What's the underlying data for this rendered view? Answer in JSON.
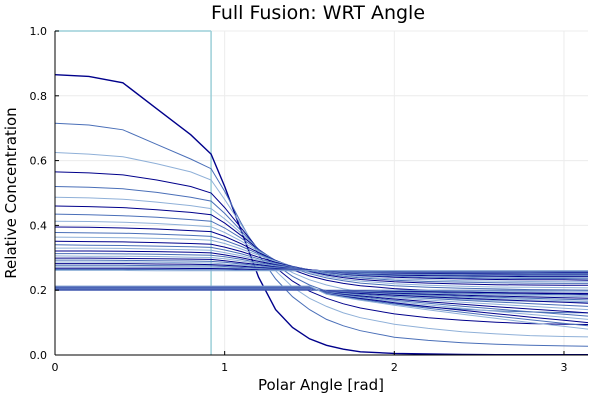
{
  "chart_data": {
    "type": "line",
    "title": "Full Fusion: WRT Angle",
    "xlabel": "Polar Angle [rad]",
    "ylabel": "Relative Concentration",
    "xlim": [
      0,
      3.14159
    ],
    "ylim": [
      0,
      1
    ],
    "x_ticks": [
      {
        "value": 0,
        "label": "0"
      },
      {
        "value": 1,
        "label": "1"
      },
      {
        "value": 2,
        "label": "2"
      },
      {
        "value": 3,
        "label": "3"
      }
    ],
    "y_ticks": [
      {
        "value": 0,
        "label": "0.0"
      },
      {
        "value": 0.2,
        "label": "0.2"
      },
      {
        "value": 0.4,
        "label": "0.4"
      },
      {
        "value": 0.6,
        "label": "0.6"
      },
      {
        "value": 0.8,
        "label": "0.8"
      },
      {
        "value": 1,
        "label": "1.0"
      }
    ],
    "grid": true,
    "legend": "none",
    "x": [
      0,
      0.2,
      0.4,
      0.6,
      0.8,
      0.92,
      1.0,
      1.1,
      1.2,
      1.3,
      1.4,
      1.5,
      1.6,
      1.7,
      1.8,
      2.0,
      2.2,
      2.4,
      2.6,
      2.8,
      3.0,
      3.14159
    ],
    "series_colors": [
      "#00008b",
      "#4a6fb8",
      "#8fb0d8"
    ],
    "reference_line": {
      "color": "#9ccfd8",
      "x": 0.92,
      "y": 1.0
    },
    "series": [
      {
        "values": [
          0.865,
          0.86,
          0.84,
          0.76,
          0.68,
          0.62,
          0.52,
          0.38,
          0.24,
          0.14,
          0.085,
          0.05,
          0.03,
          0.018,
          0.01,
          0.005,
          0.003,
          0.002,
          0.001,
          0.001,
          0.001,
          0.001
        ]
      },
      {
        "values": [
          0.715,
          0.71,
          0.695,
          0.65,
          0.605,
          0.575,
          0.505,
          0.405,
          0.31,
          0.235,
          0.18,
          0.14,
          0.11,
          0.09,
          0.075,
          0.055,
          0.045,
          0.038,
          0.033,
          0.03,
          0.028,
          0.027
        ]
      },
      {
        "values": [
          0.625,
          0.62,
          0.612,
          0.59,
          0.565,
          0.54,
          0.48,
          0.4,
          0.32,
          0.26,
          0.21,
          0.175,
          0.15,
          0.13,
          0.115,
          0.095,
          0.082,
          0.072,
          0.065,
          0.06,
          0.057,
          0.056
        ]
      },
      {
        "values": [
          0.565,
          0.562,
          0.556,
          0.54,
          0.52,
          0.5,
          0.455,
          0.39,
          0.325,
          0.27,
          0.228,
          0.197,
          0.175,
          0.158,
          0.145,
          0.127,
          0.115,
          0.107,
          0.101,
          0.097,
          0.095,
          0.094
        ]
      },
      {
        "values": [
          0.52,
          0.518,
          0.513,
          0.502,
          0.487,
          0.475,
          0.437,
          0.382,
          0.326,
          0.279,
          0.243,
          0.216,
          0.197,
          0.183,
          0.172,
          0.158,
          0.148,
          0.141,
          0.136,
          0.133,
          0.131,
          0.13
        ]
      },
      {
        "values": [
          0.487,
          0.485,
          0.481,
          0.472,
          0.461,
          0.452,
          0.42,
          0.375,
          0.326,
          0.285,
          0.254,
          0.232,
          0.216,
          0.204,
          0.196,
          0.185,
          0.178,
          0.172,
          0.168,
          0.166,
          0.164,
          0.163
        ]
      },
      {
        "values": [
          0.46,
          0.458,
          0.455,
          0.448,
          0.44,
          0.433,
          0.407,
          0.368,
          0.326,
          0.29,
          0.263,
          0.244,
          0.231,
          0.221,
          0.214,
          0.205,
          0.199,
          0.195,
          0.192,
          0.19,
          0.189,
          0.188
        ]
      },
      {
        "values": [
          0.435,
          0.433,
          0.43,
          0.425,
          0.418,
          0.413,
          0.392,
          0.36,
          0.324,
          0.292,
          0.268,
          0.251,
          0.238,
          0.229,
          0.222,
          0.214,
          0.209,
          0.206,
          0.204,
          0.202,
          0.201,
          0.2
        ]
      },
      {
        "values": [
          0.413,
          0.412,
          0.41,
          0.406,
          0.4,
          0.396,
          0.378,
          0.351,
          0.32,
          0.292,
          0.271,
          0.255,
          0.243,
          0.234,
          0.228,
          0.22,
          0.215,
          0.212,
          0.21,
          0.209,
          0.208,
          0.207
        ]
      },
      {
        "values": [
          0.395,
          0.394,
          0.392,
          0.389,
          0.384,
          0.381,
          0.366,
          0.343,
          0.316,
          0.292,
          0.272,
          0.258,
          0.247,
          0.239,
          0.233,
          0.226,
          0.222,
          0.219,
          0.217,
          0.216,
          0.215,
          0.215
        ]
      },
      {
        "values": [
          0.378,
          0.377,
          0.376,
          0.373,
          0.369,
          0.366,
          0.354,
          0.335,
          0.312,
          0.291,
          0.273,
          0.26,
          0.25,
          0.243,
          0.238,
          0.231,
          0.227,
          0.225,
          0.223,
          0.222,
          0.221,
          0.221
        ]
      },
      {
        "values": [
          0.364,
          0.363,
          0.362,
          0.36,
          0.357,
          0.354,
          0.344,
          0.327,
          0.308,
          0.289,
          0.274,
          0.262,
          0.253,
          0.246,
          0.241,
          0.235,
          0.232,
          0.229,
          0.228,
          0.227,
          0.226,
          0.226
        ]
      },
      {
        "values": [
          0.351,
          0.35,
          0.349,
          0.347,
          0.344,
          0.342,
          0.333,
          0.319,
          0.302,
          0.286,
          0.273,
          0.263,
          0.255,
          0.249,
          0.245,
          0.24,
          0.237,
          0.235,
          0.233,
          0.232,
          0.232,
          0.231
        ]
      },
      {
        "values": [
          0.34,
          0.339,
          0.338,
          0.336,
          0.334,
          0.332,
          0.324,
          0.312,
          0.297,
          0.283,
          0.272,
          0.263,
          0.256,
          0.251,
          0.247,
          0.243,
          0.24,
          0.238,
          0.237,
          0.236,
          0.236,
          0.235
        ]
      },
      {
        "values": [
          0.33,
          0.33,
          0.329,
          0.327,
          0.325,
          0.323,
          0.316,
          0.306,
          0.293,
          0.281,
          0.271,
          0.263,
          0.257,
          0.252,
          0.249,
          0.245,
          0.242,
          0.241,
          0.24,
          0.239,
          0.239,
          0.238
        ]
      },
      {
        "values": [
          0.321,
          0.321,
          0.32,
          0.319,
          0.317,
          0.315,
          0.309,
          0.3,
          0.289,
          0.279,
          0.27,
          0.263,
          0.258,
          0.254,
          0.251,
          0.247,
          0.245,
          0.244,
          0.243,
          0.242,
          0.242,
          0.242
        ]
      },
      {
        "values": [
          0.313,
          0.313,
          0.312,
          0.311,
          0.309,
          0.308,
          0.303,
          0.295,
          0.285,
          0.277,
          0.269,
          0.263,
          0.259,
          0.255,
          0.252,
          0.249,
          0.248,
          0.246,
          0.246,
          0.245,
          0.245,
          0.245
        ]
      },
      {
        "values": [
          0.306,
          0.305,
          0.305,
          0.304,
          0.302,
          0.301,
          0.297,
          0.29,
          0.282,
          0.274,
          0.268,
          0.263,
          0.259,
          0.256,
          0.254,
          0.251,
          0.25,
          0.249,
          0.248,
          0.248,
          0.248,
          0.247
        ]
      },
      {
        "values": [
          0.299,
          0.299,
          0.298,
          0.297,
          0.296,
          0.295,
          0.291,
          0.285,
          0.279,
          0.272,
          0.267,
          0.263,
          0.259,
          0.257,
          0.255,
          0.253,
          0.252,
          0.251,
          0.25,
          0.25,
          0.25,
          0.25
        ]
      },
      {
        "values": [
          0.293,
          0.293,
          0.292,
          0.291,
          0.29,
          0.289,
          0.286,
          0.281,
          0.276,
          0.27,
          0.266,
          0.262,
          0.26,
          0.258,
          0.256,
          0.255,
          0.254,
          0.253,
          0.253,
          0.252,
          0.252,
          0.252
        ]
      },
      {
        "values": [
          0.287,
          0.287,
          0.287,
          0.286,
          0.285,
          0.284,
          0.281,
          0.277,
          0.273,
          0.268,
          0.265,
          0.262,
          0.26,
          0.258,
          0.257,
          0.256,
          0.255,
          0.255,
          0.254,
          0.254,
          0.254,
          0.254
        ]
      },
      {
        "values": [
          0.282,
          0.282,
          0.282,
          0.281,
          0.28,
          0.279,
          0.277,
          0.274,
          0.27,
          0.267,
          0.264,
          0.262,
          0.26,
          0.259,
          0.258,
          0.257,
          0.256,
          0.256,
          0.256,
          0.256,
          0.255,
          0.255
        ]
      },
      {
        "values": [
          0.277,
          0.277,
          0.277,
          0.276,
          0.275,
          0.275,
          0.273,
          0.27,
          0.268,
          0.265,
          0.263,
          0.261,
          0.26,
          0.259,
          0.258,
          0.258,
          0.257,
          0.257,
          0.257,
          0.257,
          0.257,
          0.257
        ]
      },
      {
        "values": [
          0.272,
          0.272,
          0.272,
          0.272,
          0.271,
          0.271,
          0.269,
          0.267,
          0.265,
          0.263,
          0.262,
          0.261,
          0.26,
          0.26,
          0.259,
          0.259,
          0.258,
          0.258,
          0.258,
          0.258,
          0.258,
          0.258
        ]
      },
      {
        "values": [
          0.268,
          0.268,
          0.268,
          0.268,
          0.267,
          0.267,
          0.266,
          0.265,
          0.263,
          0.262,
          0.261,
          0.261,
          0.26,
          0.26,
          0.26,
          0.259,
          0.259,
          0.259,
          0.259,
          0.259,
          0.259,
          0.259
        ]
      },
      {
        "values": [
          0.264,
          0.264,
          0.264,
          0.264,
          0.263,
          0.263,
          0.263,
          0.262,
          0.261,
          0.261,
          0.26,
          0.26,
          0.26,
          0.26,
          0.26,
          0.26,
          0.26,
          0.26,
          0.26,
          0.26,
          0.26,
          0.26
        ]
      },
      {
        "values": [
          0.261,
          0.261,
          0.261,
          0.26,
          0.26,
          0.26,
          0.26,
          0.26,
          0.26,
          0.26,
          0.26,
          0.26,
          0.26,
          0.26,
          0.26,
          0.26,
          0.26,
          0.26,
          0.26,
          0.26,
          0.26,
          0.26
        ]
      }
    ]
  }
}
